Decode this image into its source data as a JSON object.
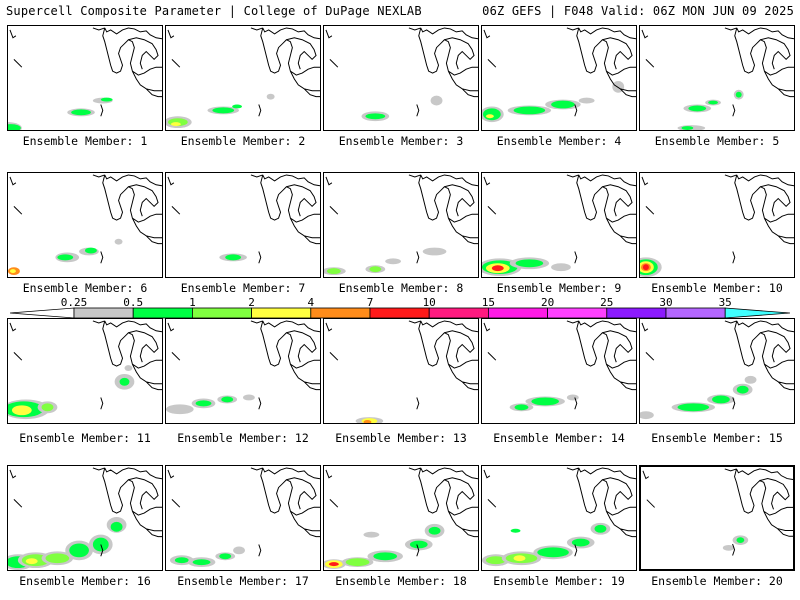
{
  "header": {
    "left_title": "Supercell Composite Parameter | College of DuPage NEXLAB",
    "right_title": "06Z GEFS | F048 Valid: 06Z MON JUN 09 2025"
  },
  "colorbar": {
    "labels": [
      "0.25",
      "0.5",
      "1",
      "2",
      "4",
      "7",
      "10",
      "15",
      "20",
      "25",
      "30",
      "35"
    ],
    "colors": [
      "#c8c8c8",
      "#00ff44",
      "#80ff40",
      "#ffff40",
      "#ff8c1a",
      "#ff1a1a",
      "#ff1a80",
      "#ff1ae6",
      "#ff40ff",
      "#8c1aff",
      "#b466ff",
      "#40ffff"
    ]
  },
  "members": [
    {
      "id": 1,
      "caption": "Ensemble Member: 1"
    },
    {
      "id": 2,
      "caption": "Ensemble Member: 2"
    },
    {
      "id": 3,
      "caption": "Ensemble Member: 3"
    },
    {
      "id": 4,
      "caption": "Ensemble Member: 4"
    },
    {
      "id": 5,
      "caption": "Ensemble Member: 5"
    },
    {
      "id": 6,
      "caption": "Ensemble Member: 6"
    },
    {
      "id": 7,
      "caption": "Ensemble Member: 7"
    },
    {
      "id": 8,
      "caption": "Ensemble Member: 8"
    },
    {
      "id": 9,
      "caption": "Ensemble Member: 9"
    },
    {
      "id": 10,
      "caption": "Ensemble Member: 10"
    },
    {
      "id": 11,
      "caption": "Ensemble Member: 11"
    },
    {
      "id": 12,
      "caption": "Ensemble Member: 12"
    },
    {
      "id": 13,
      "caption": "Ensemble Member: 13"
    },
    {
      "id": 14,
      "caption": "Ensemble Member: 14"
    },
    {
      "id": 15,
      "caption": "Ensemble Member: 15"
    },
    {
      "id": 16,
      "caption": "Ensemble Member: 16"
    },
    {
      "id": 17,
      "caption": "Ensemble Member: 17"
    },
    {
      "id": 18,
      "caption": "Ensemble Member: 18"
    },
    {
      "id": 19,
      "caption": "Ensemble Member: 19"
    },
    {
      "id": 20,
      "caption": "Ensemble Member: 20",
      "selected": true
    }
  ]
}
